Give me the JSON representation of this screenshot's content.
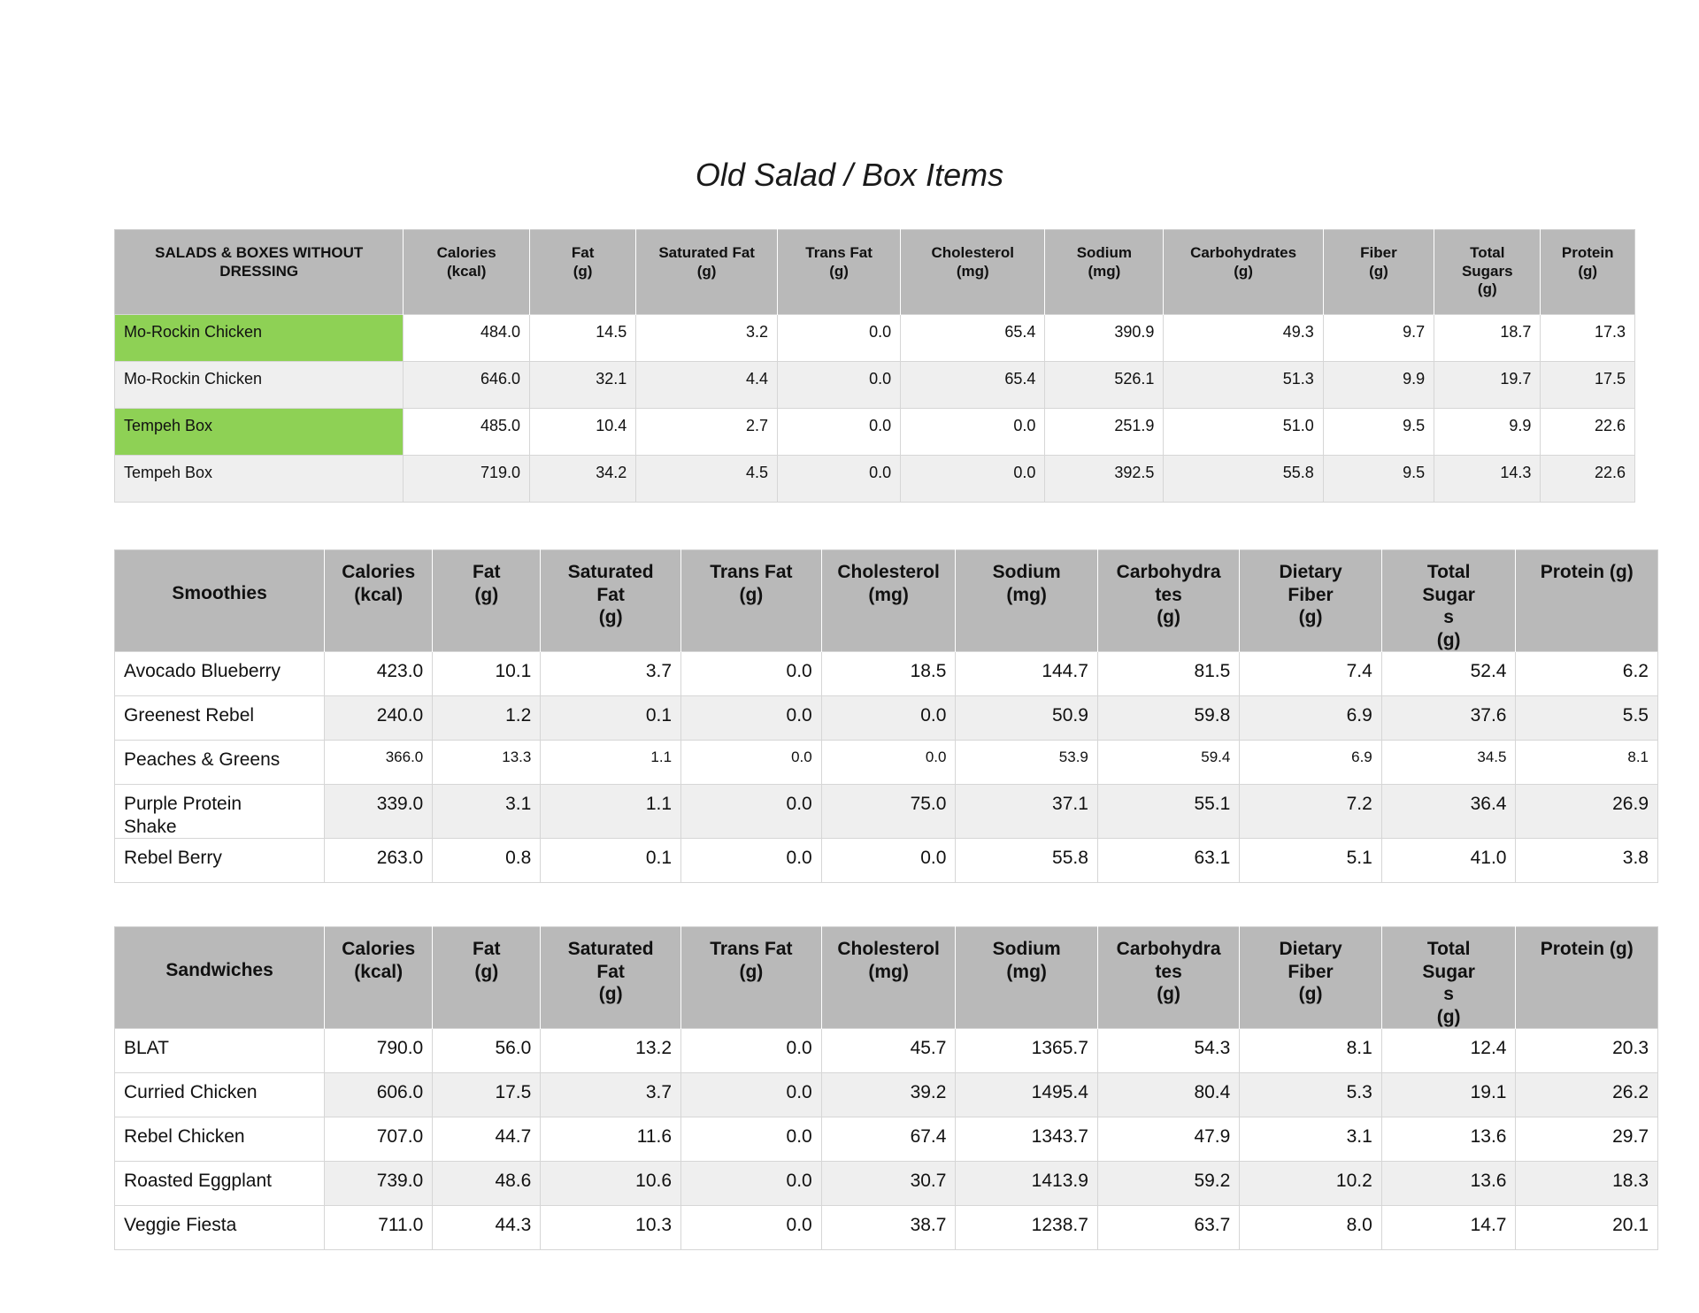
{
  "page": {
    "title": "Old Salad / Box Items"
  },
  "colors": {
    "header_bg": "#b9b9b9",
    "zebra_bg": "#efefef",
    "highlight_green": "#8ed155",
    "grid": "#d6d6d6"
  },
  "tables": [
    {
      "title": "SALADS & BOXES WITHOUT DRESSING",
      "columns": [
        {
          "label": "Calories",
          "unit": "(kcal)"
        },
        {
          "label": "Fat",
          "unit": "(g)"
        },
        {
          "label": "Saturated Fat",
          "unit": "(g)"
        },
        {
          "label": "Trans Fat",
          "unit": "(g)"
        },
        {
          "label": "Cholesterol",
          "unit": "(mg)"
        },
        {
          "label": "Sodium",
          "unit": "(mg)"
        },
        {
          "label": "Carbohydrates",
          "unit": "(g)"
        },
        {
          "label": "Fiber",
          "unit": "(g)"
        },
        {
          "label": "Total Sugars",
          "unit": "(g)"
        },
        {
          "label": "Protein",
          "unit": "(g)"
        }
      ],
      "rows": [
        {
          "name": "Mo-Rockin Chicken",
          "highlighted": true,
          "values": [
            "484.0",
            "14.5",
            "3.2",
            "0.0",
            "65.4",
            "390.9",
            "49.3",
            "9.7",
            "18.7",
            "17.3"
          ]
        },
        {
          "name": "Mo-Rockin Chicken",
          "highlighted": false,
          "values": [
            "646.0",
            "32.1",
            "4.4",
            "0.0",
            "65.4",
            "526.1",
            "51.3",
            "9.9",
            "19.7",
            "17.5"
          ]
        },
        {
          "name": "Tempeh Box",
          "highlighted": true,
          "values": [
            "485.0",
            "10.4",
            "2.7",
            "0.0",
            "0.0",
            "251.9",
            "51.0",
            "9.5",
            "9.9",
            "22.6"
          ]
        },
        {
          "name": "Tempeh Box",
          "highlighted": false,
          "values": [
            "719.0",
            "34.2",
            "4.5",
            "0.0",
            "0.0",
            "392.5",
            "55.8",
            "9.5",
            "14.3",
            "22.6"
          ]
        }
      ]
    },
    {
      "title": "Smoothies",
      "columns": [
        {
          "label": "Calories",
          "unit": "(kcal)"
        },
        {
          "label": "Fat",
          "unit": "(g)"
        },
        {
          "label": "Saturated Fat",
          "unit": "(g)"
        },
        {
          "label": "Trans Fat",
          "unit": "(g)"
        },
        {
          "label": "Cholesterol",
          "unit": "(mg)"
        },
        {
          "label": "Sodium",
          "unit": "(mg)"
        },
        {
          "label": "Carbohydrates",
          "unit": "(g)"
        },
        {
          "label": "Dietary Fiber",
          "unit": "(g)"
        },
        {
          "label": "Total Sugars",
          "unit": "(g)"
        },
        {
          "label": "Protein (g)",
          "unit": ""
        }
      ],
      "rows": [
        {
          "name": "Avocado Blueberry",
          "values": [
            "423.0",
            "10.1",
            "3.7",
            "0.0",
            "18.5",
            "144.7",
            "81.5",
            "7.4",
            "52.4",
            "6.2"
          ]
        },
        {
          "name": "Greenest Rebel",
          "values": [
            "240.0",
            "1.2",
            "0.1",
            "0.0",
            "0.0",
            "50.9",
            "59.8",
            "6.9",
            "37.6",
            "5.5"
          ]
        },
        {
          "name": "Peaches & Greens",
          "small_values": true,
          "values": [
            "366.0",
            "13.3",
            "1.1",
            "0.0",
            "0.0",
            "53.9",
            "59.4",
            "6.9",
            "34.5",
            "8.1"
          ]
        },
        {
          "name": "Purple Protein Shake",
          "wrap_name": true,
          "values": [
            "339.0",
            "3.1",
            "1.1",
            "0.0",
            "75.0",
            "37.1",
            "55.1",
            "7.2",
            "36.4",
            "26.9"
          ]
        },
        {
          "name": "Rebel Berry",
          "values": [
            "263.0",
            "0.8",
            "0.1",
            "0.0",
            "0.0",
            "55.8",
            "63.1",
            "5.1",
            "41.0",
            "3.8"
          ]
        }
      ]
    },
    {
      "title": "Sandwiches",
      "columns": [
        {
          "label": "Calories",
          "unit": "(kcal)"
        },
        {
          "label": "Fat",
          "unit": "(g)"
        },
        {
          "label": "Saturated Fat",
          "unit": "(g)"
        },
        {
          "label": "Trans Fat",
          "unit": "(g)"
        },
        {
          "label": "Cholesterol",
          "unit": "(mg)"
        },
        {
          "label": "Sodium",
          "unit": "(mg)"
        },
        {
          "label": "Carbohydrates",
          "unit": "(g)"
        },
        {
          "label": "Dietary Fiber",
          "unit": "(g)"
        },
        {
          "label": "Total Sugars",
          "unit": "(g)"
        },
        {
          "label": "Protein (g)",
          "unit": ""
        }
      ],
      "rows": [
        {
          "name": "BLAT",
          "values": [
            "790.0",
            "56.0",
            "13.2",
            "0.0",
            "45.7",
            "1365.7",
            "54.3",
            "8.1",
            "12.4",
            "20.3"
          ]
        },
        {
          "name": "Curried Chicken",
          "values": [
            "606.0",
            "17.5",
            "3.7",
            "0.0",
            "39.2",
            "1495.4",
            "80.4",
            "5.3",
            "19.1",
            "26.2"
          ]
        },
        {
          "name": "Rebel Chicken",
          "values": [
            "707.0",
            "44.7",
            "11.6",
            "0.0",
            "67.4",
            "1343.7",
            "47.9",
            "3.1",
            "13.6",
            "29.7"
          ]
        },
        {
          "name": "Roasted Eggplant",
          "values": [
            "739.0",
            "48.6",
            "10.6",
            "0.0",
            "30.7",
            "1413.9",
            "59.2",
            "10.2",
            "13.6",
            "18.3"
          ]
        },
        {
          "name": "Veggie Fiesta",
          "values": [
            "711.0",
            "44.3",
            "10.3",
            "0.0",
            "38.7",
            "1238.7",
            "63.7",
            "8.0",
            "14.7",
            "20.1"
          ]
        }
      ]
    }
  ]
}
